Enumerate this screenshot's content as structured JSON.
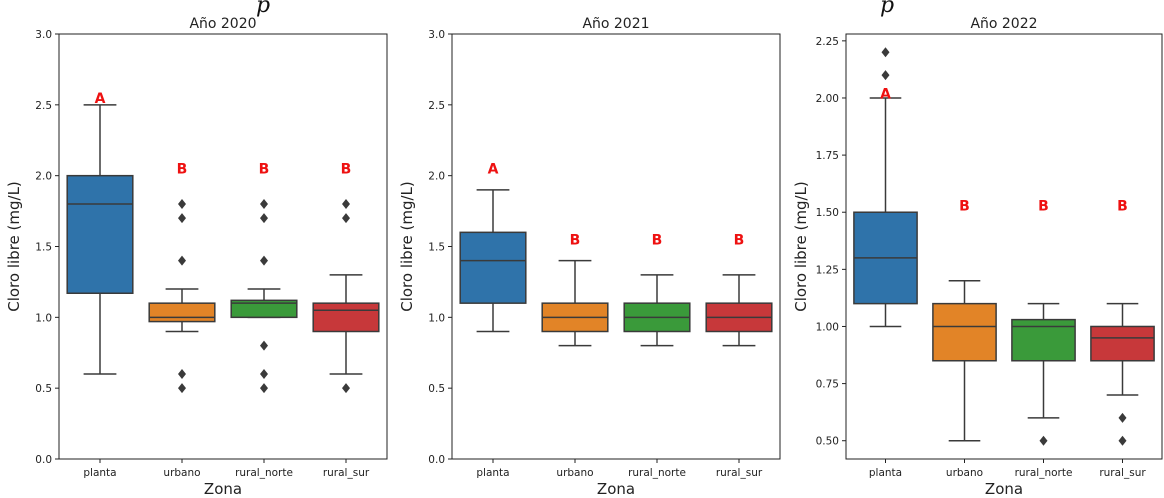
{
  "heading_fragments": [
    "p",
    "p"
  ],
  "colors": {
    "planta": "#2f73aa",
    "urbano": "#e28427",
    "rural_norte": "#3a9a3a",
    "rural_sur": "#c7383a",
    "letter": "#ee1111"
  },
  "chart_data": [
    {
      "type": "box",
      "title": "Año 2020",
      "xlabel": "Zona",
      "ylabel": "Cloro libre (mg/L)",
      "ylim": [
        0.0,
        3.0
      ],
      "yticks": [
        0.0,
        0.5,
        1.0,
        1.5,
        2.0,
        2.5,
        3.0
      ],
      "ytick_labels": [
        "0.0",
        "0.5",
        "1.0",
        "1.5",
        "2.0",
        "2.5",
        "3.0"
      ],
      "categories": [
        "planta",
        "urbano",
        "rural_norte",
        "rural_sur"
      ],
      "boxes": [
        {
          "min": 0.6,
          "q1": 1.17,
          "median": 1.8,
          "q3": 2.0,
          "max": 2.5,
          "outliers": [],
          "letter": "A",
          "letter_y": 2.55
        },
        {
          "min": 0.9,
          "q1": 0.97,
          "median": 1.0,
          "q3": 1.1,
          "max": 1.2,
          "outliers": [
            1.8,
            1.7,
            1.4,
            0.6,
            0.5
          ],
          "letter": "B",
          "letter_y": 2.05
        },
        {
          "min": 1.0,
          "q1": 1.0,
          "median": 1.1,
          "q3": 1.12,
          "max": 1.2,
          "outliers": [
            1.8,
            1.7,
            1.4,
            0.8,
            0.6,
            0.5
          ],
          "letter": "B",
          "letter_y": 2.05
        },
        {
          "min": 0.6,
          "q1": 0.9,
          "median": 1.05,
          "q3": 1.1,
          "max": 1.3,
          "outliers": [
            1.8,
            1.7,
            0.5
          ],
          "letter": "B",
          "letter_y": 2.05
        }
      ]
    },
    {
      "type": "box",
      "title": "Año 2021",
      "xlabel": "Zona",
      "ylabel": "Cloro libre (mg/L)",
      "ylim": [
        0.0,
        3.0
      ],
      "yticks": [
        0.0,
        0.5,
        1.0,
        1.5,
        2.0,
        2.5,
        3.0
      ],
      "ytick_labels": [
        "0.0",
        "0.5",
        "1.0",
        "1.5",
        "2.0",
        "2.5",
        "3.0"
      ],
      "categories": [
        "planta",
        "urbano",
        "rural_norte",
        "rural_sur"
      ],
      "boxes": [
        {
          "min": 0.9,
          "q1": 1.1,
          "median": 1.4,
          "q3": 1.6,
          "max": 1.9,
          "outliers": [],
          "letter": "A",
          "letter_y": 2.05
        },
        {
          "min": 0.8,
          "q1": 0.9,
          "median": 1.0,
          "q3": 1.1,
          "max": 1.4,
          "outliers": [],
          "letter": "B",
          "letter_y": 1.55
        },
        {
          "min": 0.8,
          "q1": 0.9,
          "median": 1.0,
          "q3": 1.1,
          "max": 1.3,
          "outliers": [],
          "letter": "B",
          "letter_y": 1.55
        },
        {
          "min": 0.8,
          "q1": 0.9,
          "median": 1.0,
          "q3": 1.1,
          "max": 1.3,
          "outliers": [],
          "letter": "B",
          "letter_y": 1.55
        }
      ]
    },
    {
      "type": "box",
      "title": "Año 2022",
      "xlabel": "Zona",
      "ylabel": "Cloro libre (mg/L)",
      "ylim": [
        0.42,
        2.28
      ],
      "yticks": [
        0.5,
        0.75,
        1.0,
        1.25,
        1.5,
        1.75,
        2.0,
        2.25
      ],
      "ytick_labels": [
        "0.50",
        "0.75",
        "1.00",
        "1.25",
        "1.50",
        "1.75",
        "2.00",
        "2.25"
      ],
      "categories": [
        "planta",
        "urbano",
        "rural_norte",
        "rural_sur"
      ],
      "boxes": [
        {
          "min": 1.0,
          "q1": 1.1,
          "median": 1.3,
          "q3": 1.5,
          "max": 2.0,
          "outliers": [
            2.2,
            2.1
          ],
          "letter": "A",
          "letter_y": 2.02
        },
        {
          "min": 0.5,
          "q1": 0.85,
          "median": 1.0,
          "q3": 1.1,
          "max": 1.2,
          "outliers": [],
          "letter": "B",
          "letter_y": 1.53
        },
        {
          "min": 0.6,
          "q1": 0.85,
          "median": 1.0,
          "q3": 1.03,
          "max": 1.1,
          "outliers": [
            0.5
          ],
          "letter": "B",
          "letter_y": 1.53
        },
        {
          "min": 0.7,
          "q1": 0.85,
          "median": 0.95,
          "q3": 1.0,
          "max": 1.1,
          "outliers": [
            0.6,
            0.5
          ],
          "letter": "B",
          "letter_y": 1.53
        }
      ]
    }
  ]
}
